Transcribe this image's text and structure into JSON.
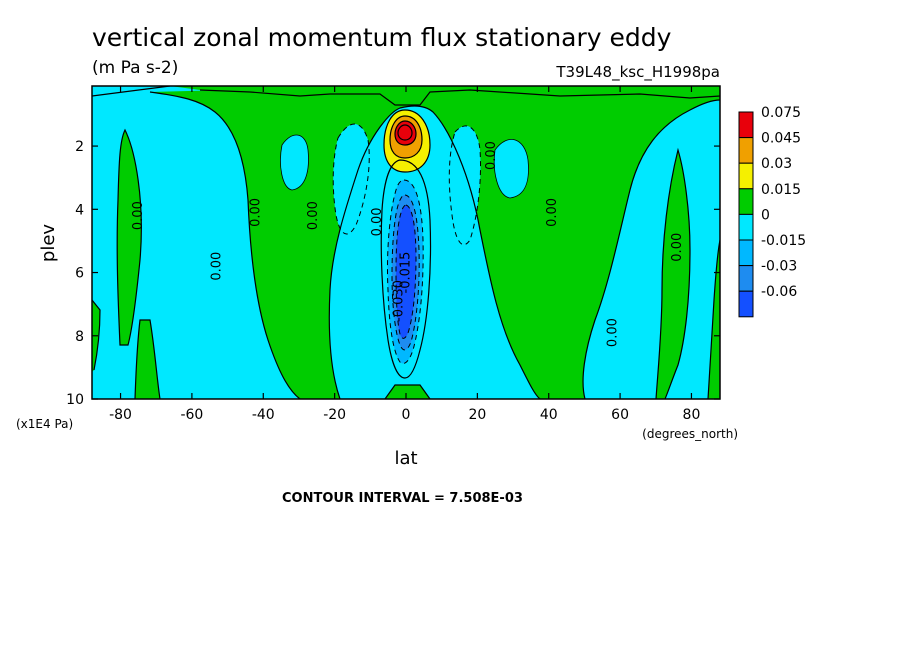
{
  "chart_data": {
    "type": "heatmap",
    "title": "vertical zonal momentum flux stationary eddy",
    "units": "(m Pa s-2)",
    "run_label": "T39L48_ksc_H1998pa",
    "xlabel": "lat",
    "x_unit_label": "(degrees_north)",
    "ylabel": "plev",
    "y_unit_label": "(x1E4 Pa)",
    "xlim": [
      -88,
      88
    ],
    "ylim": [
      10,
      0.1
    ],
    "x_ticks": [
      -80,
      -60,
      -40,
      -20,
      0,
      20,
      40,
      60,
      80
    ],
    "x_tick_labels": [
      "-80",
      "-60",
      "-40",
      "-20",
      "0",
      "20",
      "40",
      "60",
      "80"
    ],
    "y_ticks": [
      2,
      4,
      6,
      8,
      10
    ],
    "y_tick_labels": [
      "2",
      "4",
      "6",
      "8",
      "10"
    ],
    "contour_interval_text": "CONTOUR INTERVAL = 7.508E-03",
    "legend": {
      "placement": "right",
      "levels": [
        "0.075",
        "0.045",
        "0.03",
        "0.015",
        "0",
        "-0.015",
        "-0.03",
        "-0.06"
      ],
      "colors": [
        "#e8000b",
        "#f0a000",
        "#f5f000",
        "#00cc00",
        "#00e8ff",
        "#00b8ff",
        "#1e8cf0",
        "#1450ff"
      ]
    },
    "fill_colors": {
      "positive_1": "#00cc00",
      "positive_2": "#f5f000",
      "positive_3": "#f0a000",
      "positive_4": "#e8000b",
      "negative_1": "#00e8ff",
      "negative_2": "#00b8ff",
      "negative_3": "#1e8cf0",
      "negative_4": "#1450ff"
    },
    "contour_labels": [
      {
        "text": "0.00",
        "lat": -74,
        "plev": 4.2,
        "angle": -90
      },
      {
        "text": "0.00",
        "lat": -52,
        "plev": 5.8,
        "angle": -90
      },
      {
        "text": "0.00",
        "lat": -41,
        "plev": 4.1,
        "angle": -90
      },
      {
        "text": "0.00",
        "lat": -25,
        "plev": 4.2,
        "angle": -90
      },
      {
        "text": "0.00",
        "lat": -7,
        "plev": 4.4,
        "angle": -90
      },
      {
        "text": "0.00",
        "lat": 25,
        "plev": 2.3,
        "angle": -90
      },
      {
        "text": "0.00",
        "lat": 42,
        "plev": 4.1,
        "angle": -90
      },
      {
        "text": "0.00",
        "lat": 59,
        "plev": 7.9,
        "angle": -90
      },
      {
        "text": "0.00",
        "lat": 77,
        "plev": 5.2,
        "angle": -90
      },
      {
        "text": "-0.015",
        "lat": 1,
        "plev": 6.0,
        "angle": -90
      },
      {
        "text": "-0.030",
        "lat": -1,
        "plev": 6.9,
        "angle": -90
      }
    ],
    "features": [
      {
        "kind": "positive_max",
        "lat": 0,
        "plev": 1.5,
        "value": 0.075
      },
      {
        "kind": "negative_min",
        "lat": 0,
        "plev": 6.0,
        "value": -0.06
      }
    ]
  }
}
